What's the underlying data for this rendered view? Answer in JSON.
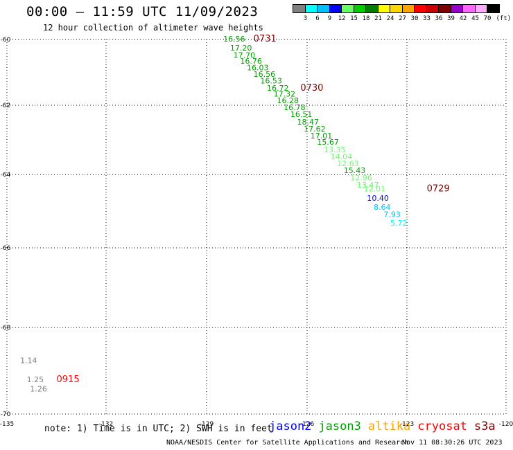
{
  "header": {
    "title": "00:00 — 11:59 UTC 11/09/2023",
    "subtitle": "12 hour collection of altimeter wave heights"
  },
  "colorbar": {
    "unit": "(ft)",
    "labels": [
      "3",
      "6",
      "9",
      "12",
      "15",
      "18",
      "21",
      "24",
      "27",
      "30",
      "33",
      "36",
      "39",
      "42",
      "45",
      "70"
    ],
    "colors": [
      "#808080",
      "#00ffff",
      "#00bfff",
      "#0000ff",
      "#66ff66",
      "#00cc00",
      "#008000",
      "#ffff00",
      "#ffd700",
      "#ffa500",
      "#ff0000",
      "#cc0000",
      "#800000",
      "#9900cc",
      "#ff66ff",
      "#ffaaff",
      "#000000"
    ]
  },
  "chart_data": {
    "type": "scatter",
    "x_ticks": [
      {
        "label": "-135",
        "value": -135
      },
      {
        "label": "-132",
        "value": -132
      },
      {
        "label": "-129",
        "value": -129
      },
      {
        "label": "-126",
        "value": -126
      },
      {
        "label": "-123",
        "value": -123
      },
      {
        "label": "-120",
        "value": -120
      }
    ],
    "y_ticks": [
      {
        "label": "-60",
        "value": -60
      },
      {
        "label": "-62",
        "value": -62
      },
      {
        "label": "-64",
        "value": -64
      },
      {
        "label": "-66",
        "value": -66
      },
      {
        "label": "-68",
        "value": -68
      },
      {
        "label": "-70",
        "value": -70
      }
    ],
    "xlim": [
      -135,
      -120
    ],
    "grid": true,
    "series": [
      {
        "name": "jason3",
        "points": [
          {
            "lon": -128.5,
            "lat": -60.06,
            "label": "16.56",
            "color": "#00a000"
          },
          {
            "lon": -128.3,
            "lat": -60.34,
            "label": "17.20",
            "color": "#00a000"
          },
          {
            "lon": -128.2,
            "lat": -60.56,
            "label": "17.70",
            "color": "#00a000"
          },
          {
            "lon": -128.0,
            "lat": -60.74,
            "label": "16.76",
            "color": "#00a000"
          },
          {
            "lon": -127.8,
            "lat": -60.94,
            "label": "16.03",
            "color": "#00a000"
          },
          {
            "lon": -127.6,
            "lat": -61.14,
            "label": "16.56",
            "color": "#00a000"
          },
          {
            "lon": -127.4,
            "lat": -61.34,
            "label": "16.53",
            "color": "#00a000"
          },
          {
            "lon": -127.2,
            "lat": -61.56,
            "label": "16.72",
            "color": "#00a000"
          },
          {
            "lon": -127.0,
            "lat": -61.74,
            "label": "17.32",
            "color": "#00a000"
          },
          {
            "lon": -126.9,
            "lat": -61.94,
            "label": "16.28",
            "color": "#00a000"
          },
          {
            "lon": -126.7,
            "lat": -62.14,
            "label": "16.78",
            "color": "#00a000"
          },
          {
            "lon": -126.5,
            "lat": -62.34,
            "label": "16.51",
            "color": "#00a000"
          },
          {
            "lon": -126.3,
            "lat": -62.56,
            "label": "18.47",
            "color": "#00a000"
          },
          {
            "lon": -126.1,
            "lat": -62.76,
            "label": "17.62",
            "color": "#00a000"
          },
          {
            "lon": -125.9,
            "lat": -62.96,
            "label": "17.01",
            "color": "#00a000"
          },
          {
            "lon": -125.7,
            "lat": -63.14,
            "label": "15.67",
            "color": "#00a000"
          },
          {
            "lon": -125.5,
            "lat": -63.36,
            "label": "13.35",
            "color": "#66ff66"
          },
          {
            "lon": -125.3,
            "lat": -63.56,
            "label": "14.04",
            "color": "#66ff66"
          },
          {
            "lon": -125.1,
            "lat": -63.76,
            "label": "12.63",
            "color": "#66ff66"
          },
          {
            "lon": -124.9,
            "lat": -63.96,
            "label": "15.43",
            "color": "#00a000"
          },
          {
            "lon": -124.7,
            "lat": -64.16,
            "label": "12.96",
            "color": "#66ff66"
          },
          {
            "lon": -124.5,
            "lat": -64.36,
            "label": "13.47",
            "color": "#66ff66"
          },
          {
            "lon": -124.3,
            "lat": -64.46,
            "label": "12.01",
            "color": "#66ff66"
          },
          {
            "lon": -124.2,
            "lat": -64.72,
            "label": "10.40",
            "color": "#0000ff"
          },
          {
            "lon": -124.0,
            "lat": -64.96,
            "label": "8.64",
            "color": "#00bfff"
          },
          {
            "lon": -123.7,
            "lat": -65.16,
            "label": "7.93",
            "color": "#00bfff"
          },
          {
            "lon": -123.5,
            "lat": -65.4,
            "label": "5.72",
            "color": "#00ffff"
          }
        ]
      },
      {
        "name": "s3a",
        "points": [
          {
            "lon": -134.6,
            "lat": -68.82,
            "label": "1.14",
            "color": "#808080"
          },
          {
            "lon": -134.4,
            "lat": -69.26,
            "label": "1.25",
            "color": "#808080"
          },
          {
            "lon": -134.3,
            "lat": -69.48,
            "label": "1.26",
            "color": "#808080"
          }
        ]
      }
    ],
    "time_labels": [
      {
        "lon": -127.6,
        "lat": -60.06,
        "label": "0731",
        "color": "#800000"
      },
      {
        "lon": -126.2,
        "lat": -61.56,
        "label": "0730",
        "color": "#800000"
      },
      {
        "lon": -122.4,
        "lat": -64.46,
        "label": "0729",
        "color": "#800000"
      },
      {
        "lon": -133.5,
        "lat": -69.26,
        "label": "0915",
        "color": "#ff0000"
      }
    ]
  },
  "footer": {
    "note": "note: 1) Time is in UTC; 2) SWH is in feet",
    "missions": [
      {
        "name": "jason2",
        "color": "#0000ff"
      },
      {
        "name": "jason3",
        "color": "#00a000"
      },
      {
        "name": "altika",
        "color": "#ffa500"
      },
      {
        "name": "cryosat",
        "color": "#ff0000"
      },
      {
        "name": "s3a",
        "color": "#800000"
      }
    ],
    "credit": "NOAA/NESDIS Center for Satellite Applications and Research",
    "timestamp": "Nov 11 08:30:26 UTC 2023"
  }
}
